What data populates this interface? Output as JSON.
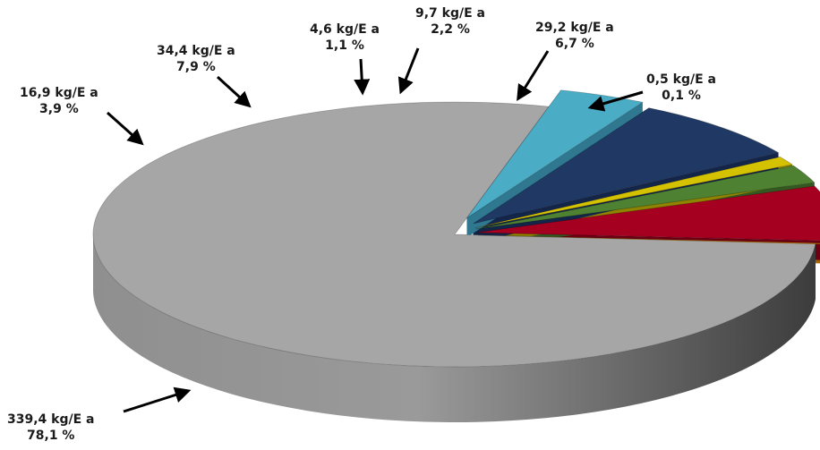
{
  "chart_data": {
    "type": "pie",
    "style": "3d-exploded",
    "legend": "none",
    "slices": [
      {
        "value": 339.4,
        "percent": 78.1,
        "value_label": "339,4 kg/E a",
        "percent_label": "78,1 %",
        "color": "#a6a6a6"
      },
      {
        "value": 16.9,
        "percent": 3.9,
        "value_label": "16,9 kg/E a",
        "percent_label": "3,9 %",
        "color": "#4bacc6"
      },
      {
        "value": 34.4,
        "percent": 7.9,
        "value_label": "34,4 kg/E a",
        "percent_label": "7,9 %",
        "color": "#1f3864"
      },
      {
        "value": 4.6,
        "percent": 1.1,
        "value_label": "4,6 kg/E a",
        "percent_label": "1,1 %",
        "color": "#d4c100"
      },
      {
        "value": 9.7,
        "percent": 2.2,
        "value_label": "9,7 kg/E a",
        "percent_label": "2,2 %",
        "color": "#4e8131"
      },
      {
        "value": 29.2,
        "percent": 6.7,
        "value_label": "29,2 kg/E a",
        "percent_label": "6,7 %",
        "color": "#a5001f"
      },
      {
        "value": 0.5,
        "percent": 0.1,
        "value_label": "0,5 kg/E a",
        "percent_label": "0,1 %",
        "color": "#e08a00"
      }
    ]
  }
}
